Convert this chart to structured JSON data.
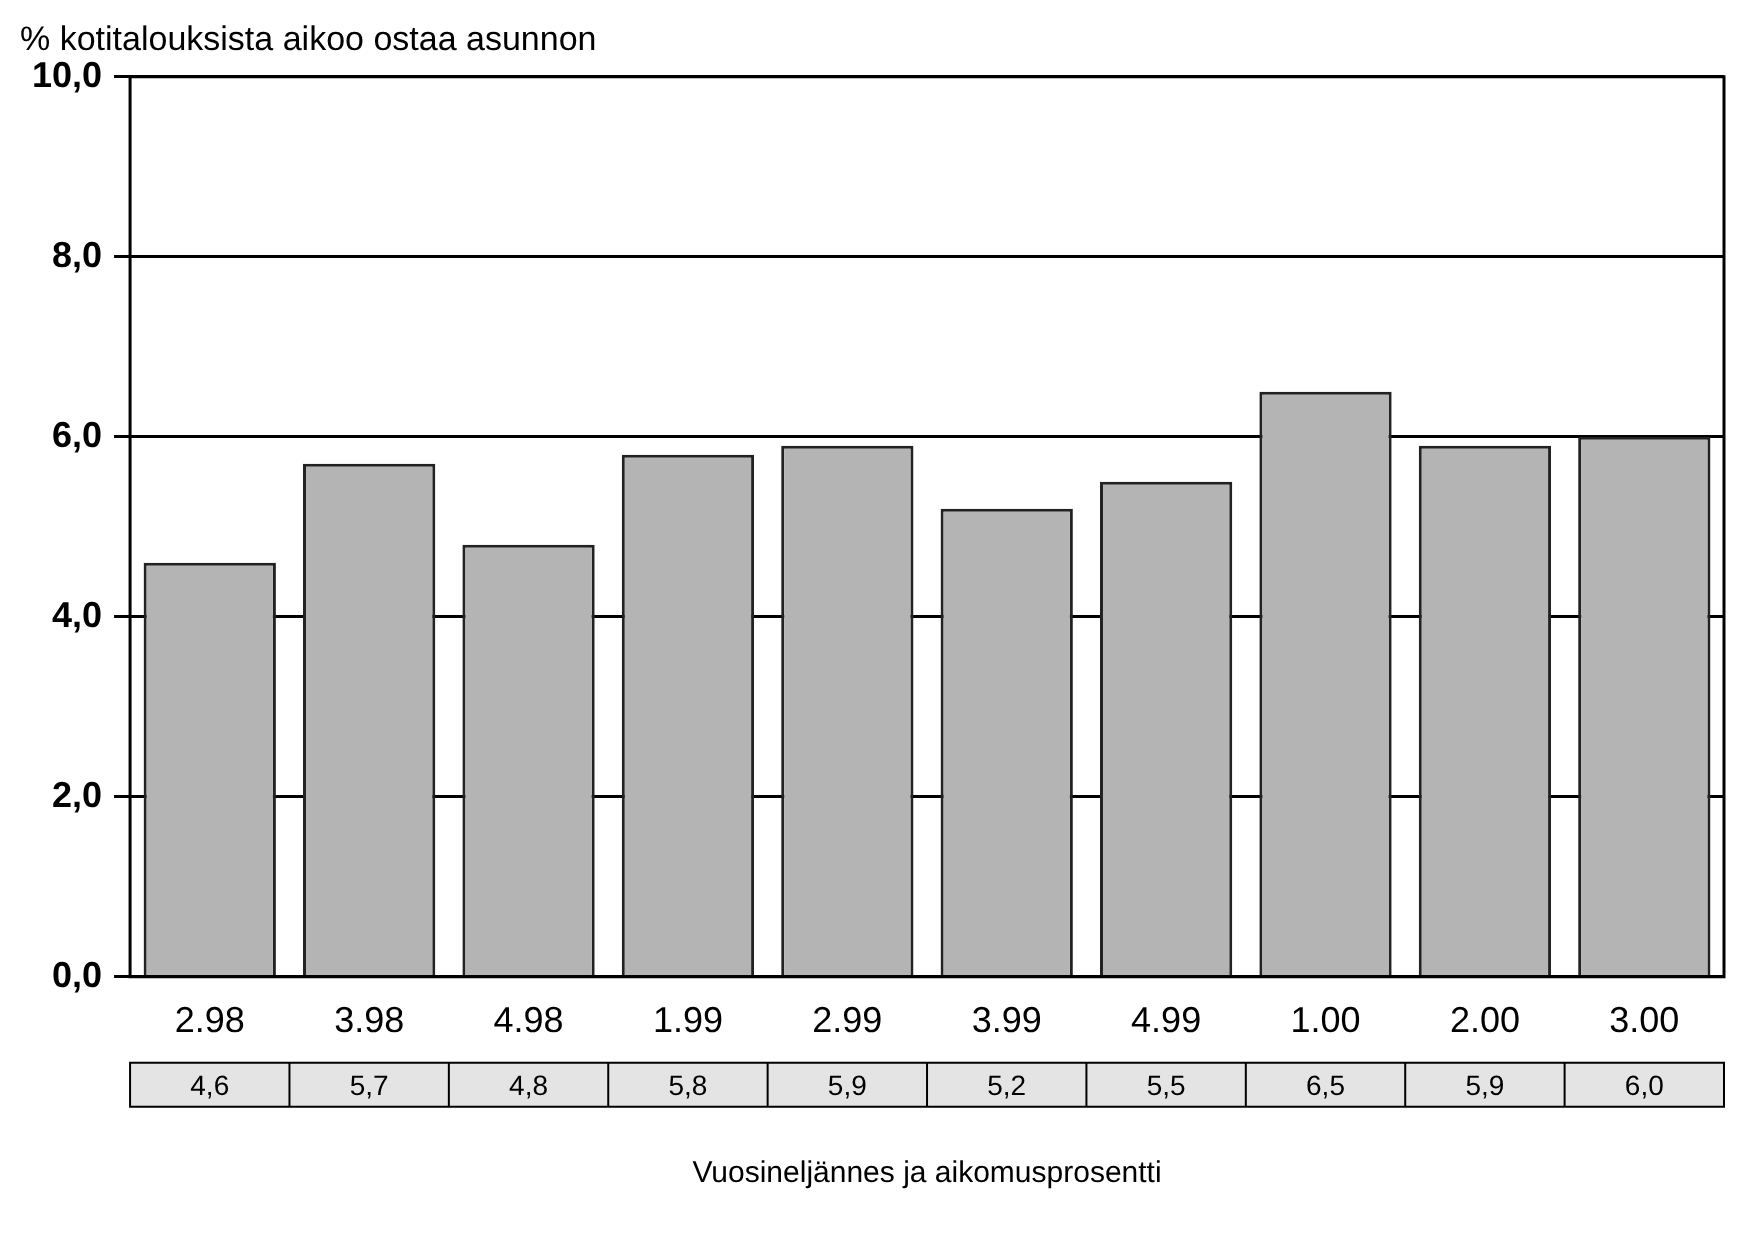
{
  "chart_data": {
    "type": "bar",
    "title": "% kotitalouksista aikoo ostaa asunnon",
    "xlabel": "Vuosineljännes ja aikomusprosentti",
    "categories": [
      "2.98",
      "3.98",
      "4.98",
      "1.99",
      "2.99",
      "3.99",
      "4.99",
      "1.00",
      "2.00",
      "3.00"
    ],
    "values": [
      4.6,
      5.7,
      4.8,
      5.8,
      5.9,
      5.2,
      5.5,
      6.5,
      5.9,
      6.0
    ],
    "value_labels": [
      "4,6",
      "5,7",
      "4,8",
      "5,8",
      "5,9",
      "5,2",
      "5,5",
      "6,5",
      "5,9",
      "6,0"
    ],
    "color": "#b4b4b4",
    "ylim": [
      0,
      10
    ],
    "yticks": [
      {
        "value": 0,
        "label": "0,0"
      },
      {
        "value": 2,
        "label": "2,0"
      },
      {
        "value": 4,
        "label": "4,0"
      },
      {
        "value": 6,
        "label": "6,0"
      },
      {
        "value": 8,
        "label": "8,0"
      },
      {
        "value": 10,
        "label": "10,0"
      }
    ],
    "grid": "y",
    "legend": false
  }
}
